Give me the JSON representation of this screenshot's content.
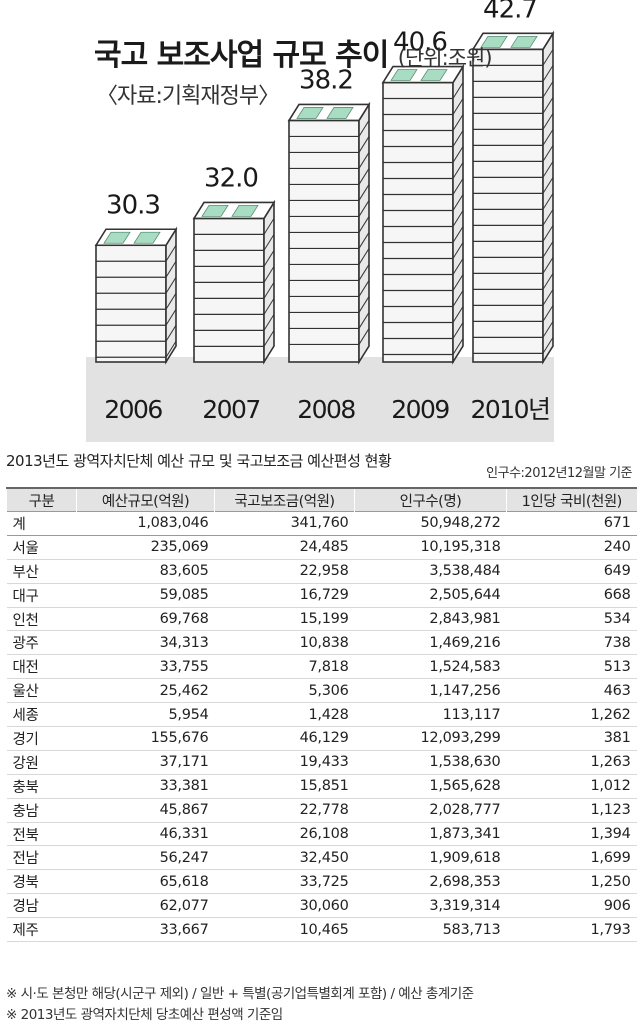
{
  "chart_data": {
    "type": "bar",
    "title": "국고 보조사업 규모 추이",
    "unit": "(단위:조원)",
    "source": "〈자료:기획재정부〉",
    "categories": [
      "2006",
      "2007",
      "2008",
      "2009",
      "2010년"
    ],
    "values": [
      30.3,
      32.0,
      38.2,
      40.6,
      42.7
    ],
    "value_labels": [
      "30.3",
      "32.0",
      "38.2",
      "40.6",
      "42.7"
    ],
    "colors": {
      "money_top": "#a8dcc3",
      "stack_edge": "#333333",
      "floor": "#e2e2e2"
    }
  },
  "table": {
    "title": "2013년도 광역자치단체 예산 규모 및 국고보조금 예산편성 현황",
    "note": "인구수:2012년12월말 기준",
    "headers": [
      "구분",
      "예산규모(억원)",
      "국고보조금(억원)",
      "인구수(명)",
      "1인당 국비(천원)"
    ],
    "rows": [
      [
        "계",
        "1,083,046",
        "341,760",
        "50,948,272",
        "671"
      ],
      [
        "서울",
        "235,069",
        "24,485",
        "10,195,318",
        "240"
      ],
      [
        "부산",
        "83,605",
        "22,958",
        "3,538,484",
        "649"
      ],
      [
        "대구",
        "59,085",
        "16,729",
        "2,505,644",
        "668"
      ],
      [
        "인천",
        "69,768",
        "15,199",
        "2,843,981",
        "534"
      ],
      [
        "광주",
        "34,313",
        "10,838",
        "1,469,216",
        "738"
      ],
      [
        "대전",
        "33,755",
        "7,818",
        "1,524,583",
        "513"
      ],
      [
        "울산",
        "25,462",
        "5,306",
        "1,147,256",
        "463"
      ],
      [
        "세종",
        "5,954",
        "1,428",
        "113,117",
        "1,262"
      ],
      [
        "경기",
        "155,676",
        "46,129",
        "12,093,299",
        "381"
      ],
      [
        "강원",
        "37,171",
        "19,433",
        "1,538,630",
        "1,263"
      ],
      [
        "충북",
        "33,381",
        "15,851",
        "1,565,628",
        "1,012"
      ],
      [
        "충남",
        "45,867",
        "22,778",
        "2,028,777",
        "1,123"
      ],
      [
        "전북",
        "46,331",
        "26,108",
        "1,873,341",
        "1,394"
      ],
      [
        "전남",
        "56,247",
        "32,450",
        "1,909,618",
        "1,699"
      ],
      [
        "경북",
        "65,618",
        "33,725",
        "2,698,353",
        "1,250"
      ],
      [
        "경남",
        "62,077",
        "30,060",
        "3,319,314",
        "906"
      ],
      [
        "제주",
        "33,667",
        "10,465",
        "583,713",
        "1,793"
      ]
    ]
  },
  "footnotes": [
    "※ 시·도 본청만 해당(시군구 제외) / 일반 + 특별(공기업특별회계 포함) / 예산 총계기준",
    "※ 2013년도 광역자치단체 당초예산 편성액 기준임"
  ]
}
